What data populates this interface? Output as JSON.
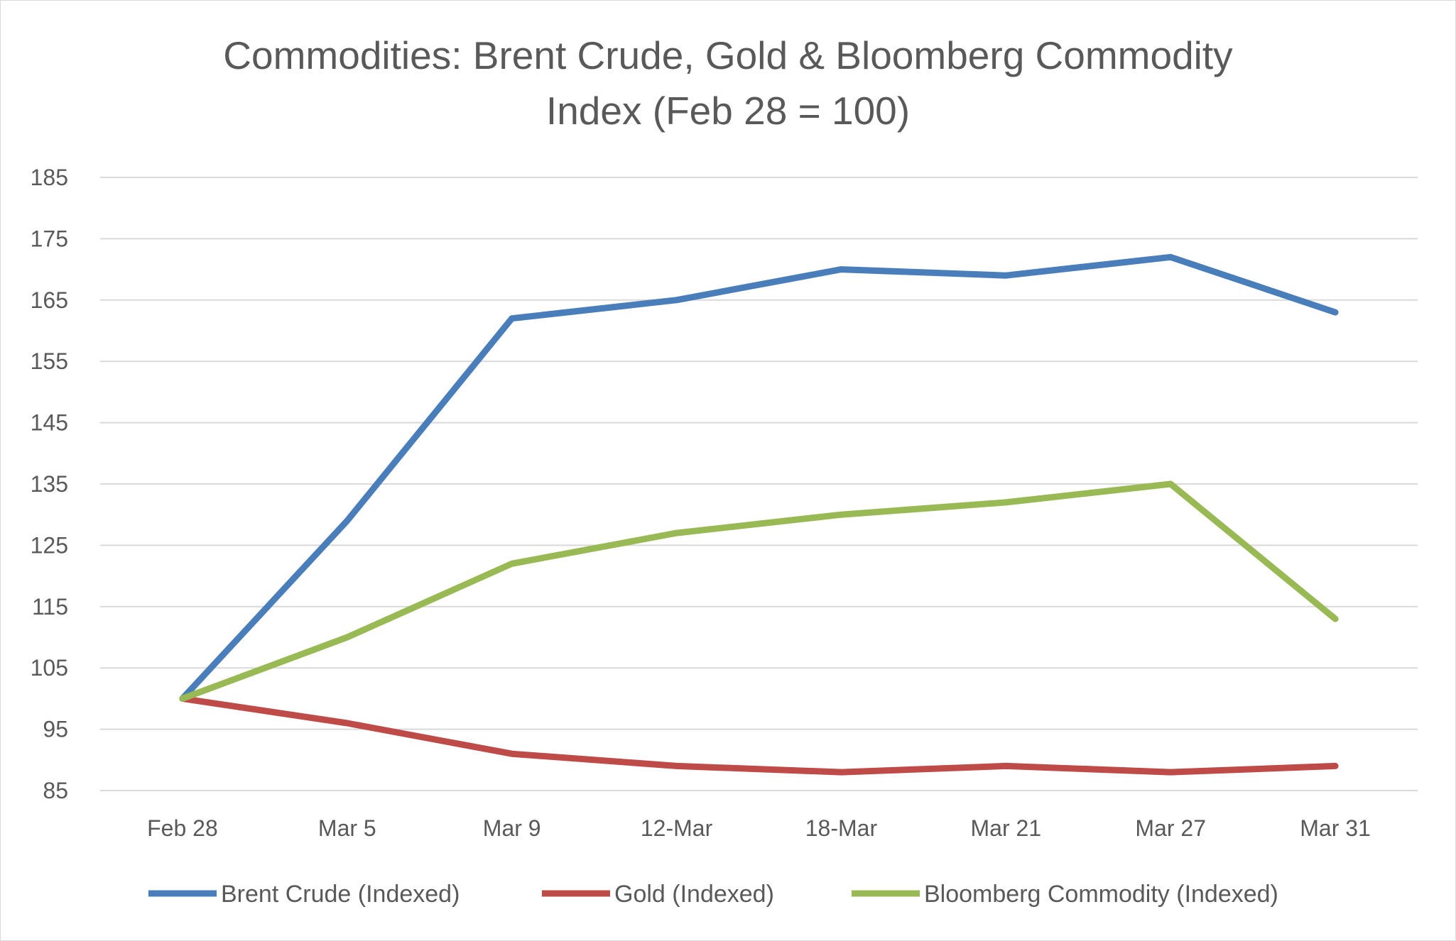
{
  "chart_data": {
    "type": "line",
    "title_lines": [
      "Commodities: Brent Crude, Gold & Bloomberg Commodity",
      "Index (Feb 28 = 100)"
    ],
    "categories": [
      "Feb 28",
      "Mar 5",
      "Mar 9",
      "12-Mar",
      "18-Mar",
      "Mar 21",
      "Mar 27",
      "Mar 31"
    ],
    "ylim": [
      85,
      185
    ],
    "yticks": [
      85,
      95,
      105,
      115,
      125,
      135,
      145,
      155,
      165,
      175,
      185
    ],
    "grid": true,
    "legend_position": "bottom",
    "series": [
      {
        "name": "Brent Crude (Indexed)",
        "color": "#4a7ebb",
        "values": [
          100,
          129,
          162,
          165,
          170,
          169,
          172,
          163
        ]
      },
      {
        "name": "Gold (Indexed)",
        "color": "#be4b48",
        "values": [
          100,
          96,
          91,
          89,
          88,
          89,
          88,
          89
        ]
      },
      {
        "name": "Bloomberg Commodity (Indexed)",
        "color": "#98b954",
        "values": [
          100,
          110,
          122,
          127,
          130,
          132,
          135,
          113
        ]
      }
    ]
  }
}
